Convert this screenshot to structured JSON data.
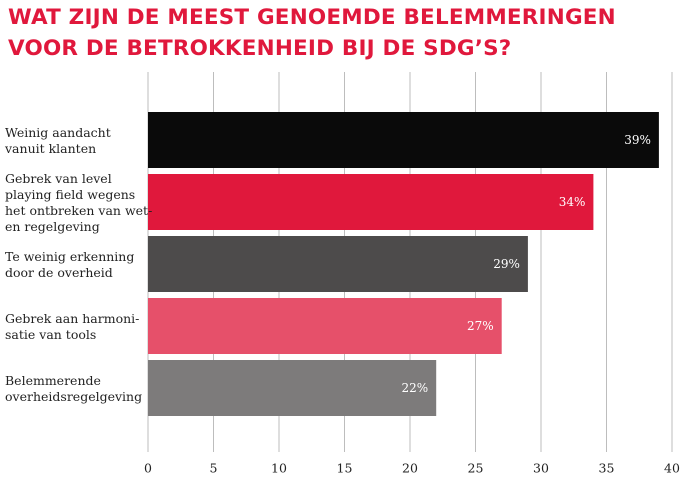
{
  "chart_data": {
    "type": "bar",
    "orientation": "horizontal",
    "title": "WAT ZIJN DE MEEST GENOEMDE BELEMMERINGEN VOOR DE BETROKKENHEID BIJ DE SDG’S?",
    "categories": [
      [
        "Weinig aandacht",
        "vanuit klanten"
      ],
      [
        "Gebrek van level",
        "playing field wegens",
        "het ontbreken van wet-",
        "en regelgeving"
      ],
      [
        "Te weinig erkenning",
        "door de overheid"
      ],
      [
        "Gebrek aan harmoni-",
        "satie van tools"
      ],
      [
        "Belemmerende",
        "overheidsregelgeving"
      ]
    ],
    "values": [
      39,
      34,
      29,
      27,
      22
    ],
    "value_labels": [
      "39%",
      "34%",
      "29%",
      "27%",
      "22%"
    ],
    "colors": [
      "#0a0a0a",
      "#e0183c",
      "#4d4b4b",
      "#e6506a",
      "#7d7b7b"
    ],
    "xlim": [
      0,
      40
    ],
    "xticks": [
      0,
      5,
      10,
      15,
      20,
      25,
      30,
      35,
      40
    ],
    "grid": true,
    "xlabel": "",
    "ylabel": ""
  }
}
